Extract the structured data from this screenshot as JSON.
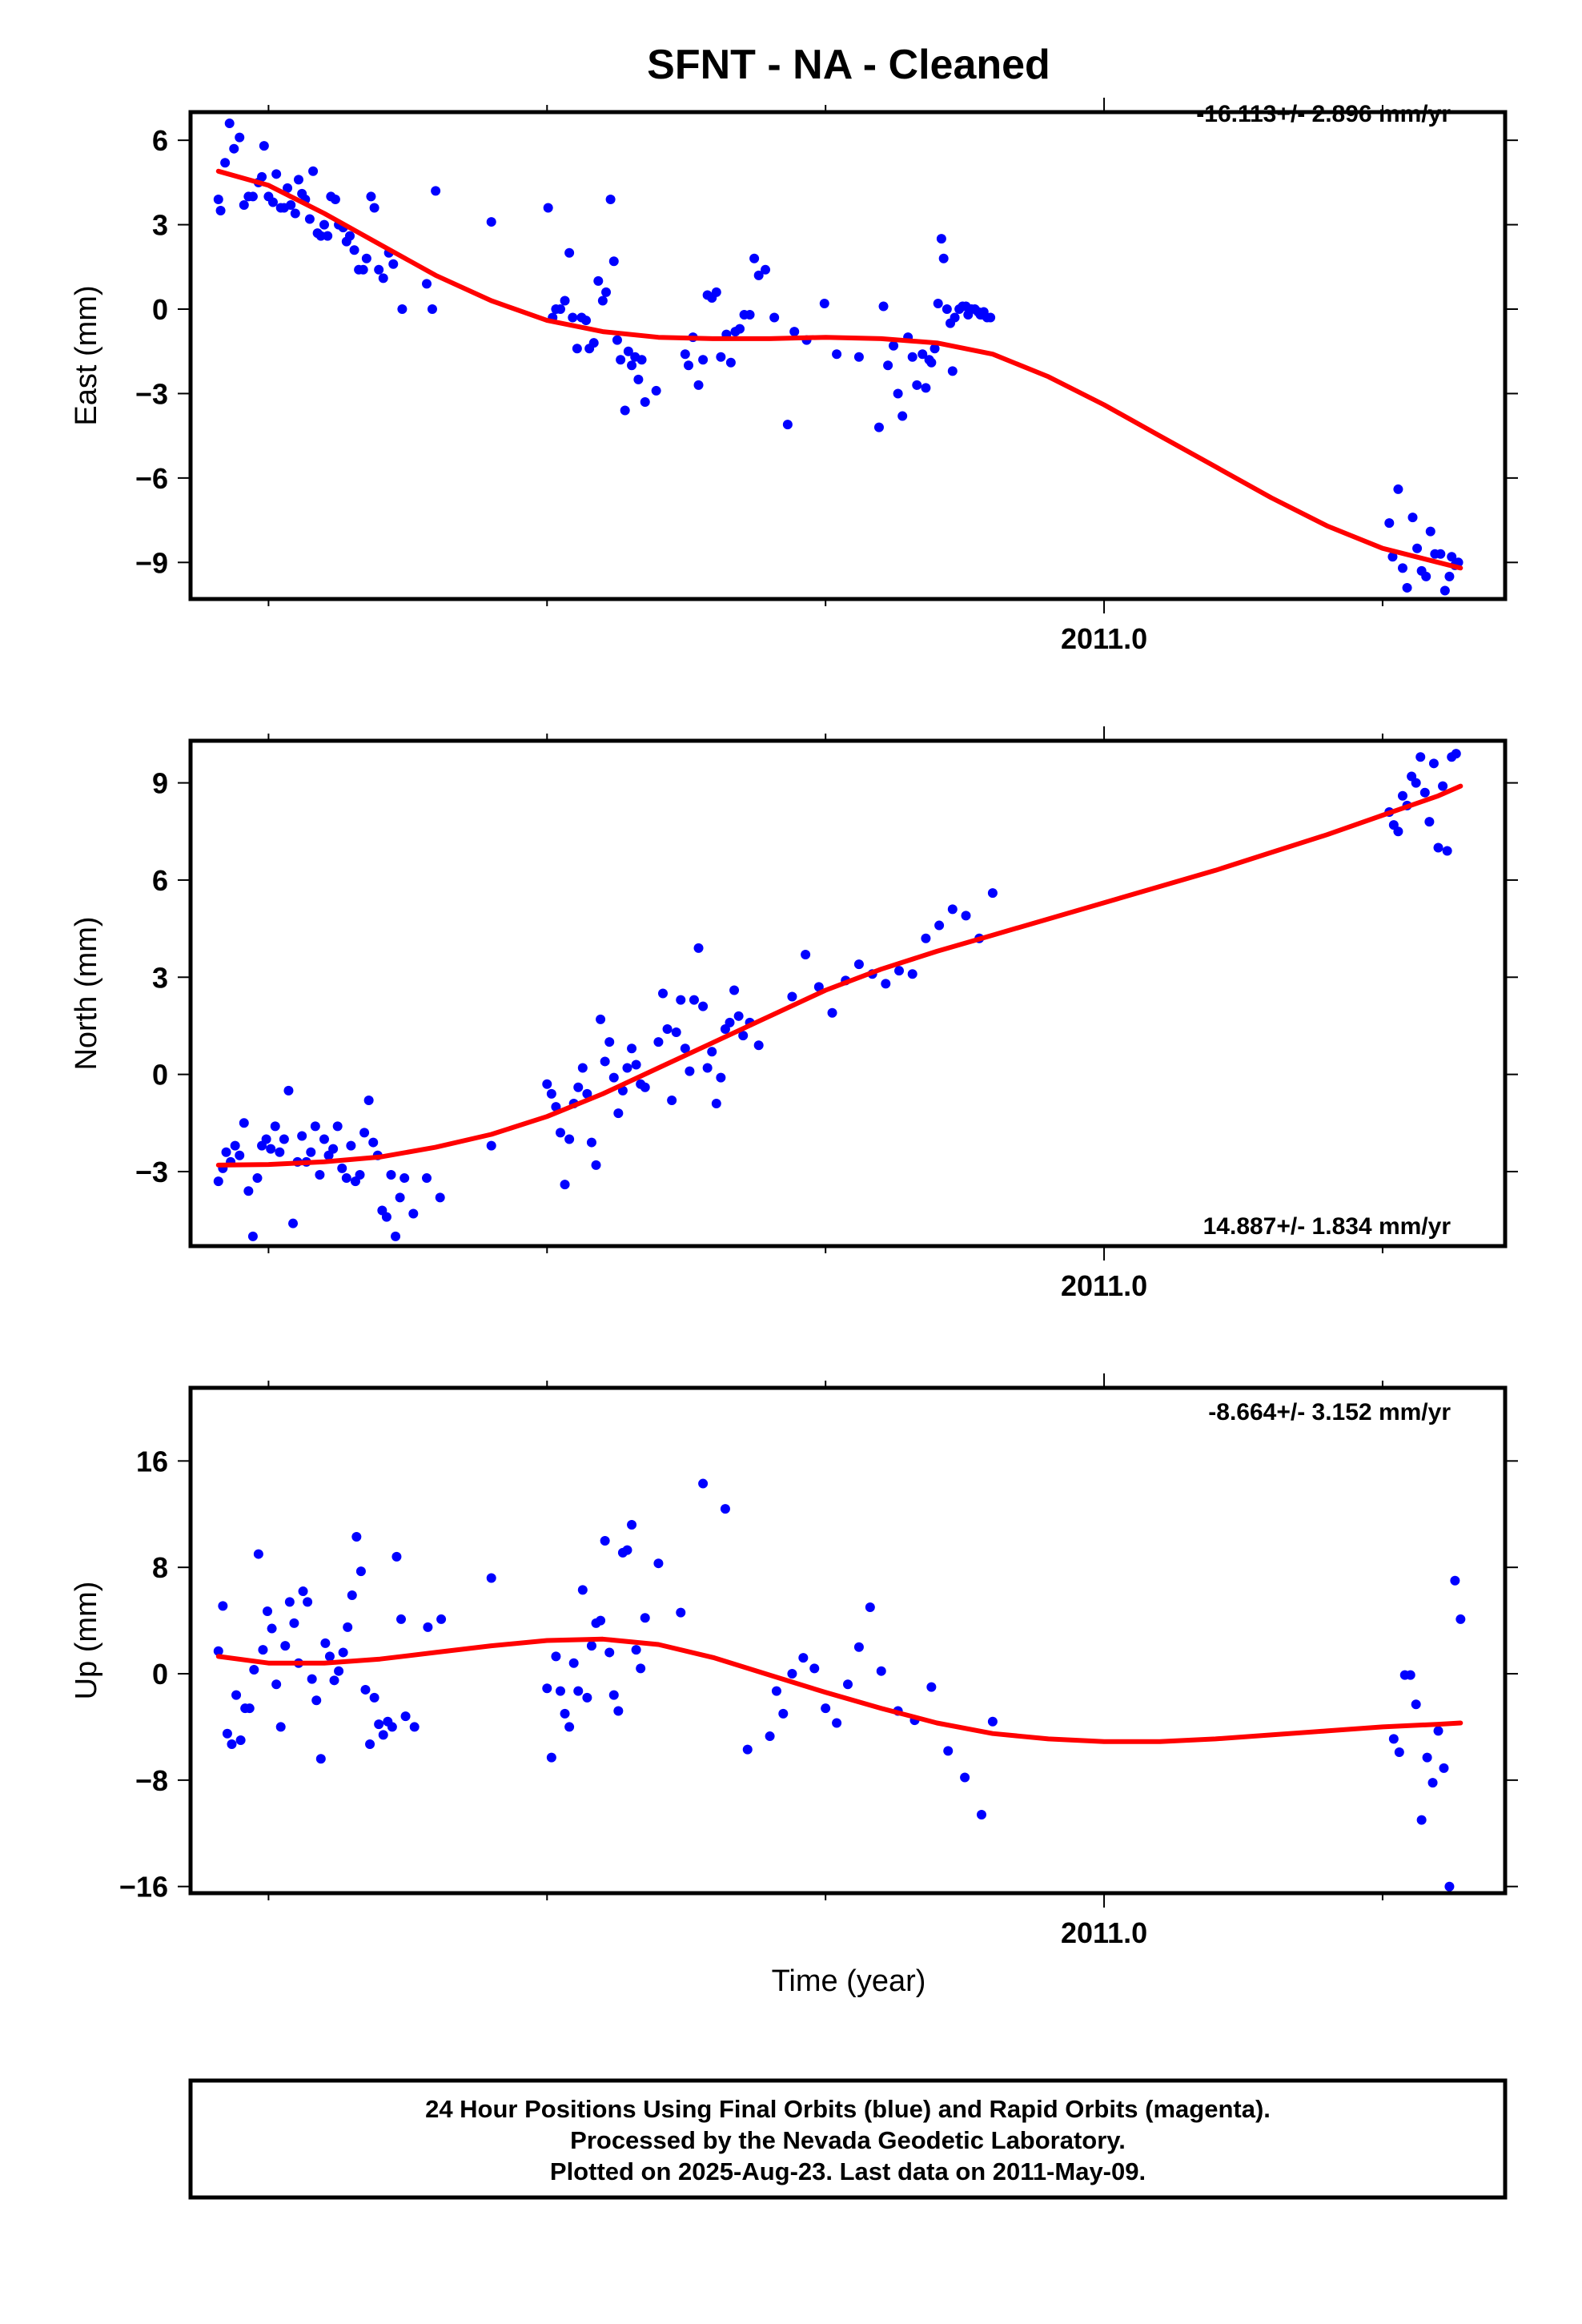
{
  "title": "SFNT  - NA - Cleaned",
  "footer": {
    "line1": "24 Hour Positions Using Final Orbits (blue) and Rapid Orbits (magenta).",
    "line2": "Processed by the Nevada Geodetic Laboratory.",
    "line3": "Plotted on 2025-Aug-23. Last data on 2011-May-09."
  },
  "colors": {
    "points": "#0000ff",
    "fit": "#ff0000",
    "frame": "#000000"
  },
  "chart_data": [
    {
      "type": "scatter",
      "ylabel": "East (mm)",
      "xtick_label": "2011.0",
      "xlim": [
        2010.18,
        2011.36
      ],
      "ylim": [
        -10.3,
        7.0
      ],
      "yticks": [
        6,
        3,
        0,
        -3,
        -6,
        -9
      ],
      "ytick_labels": [
        "6",
        "3",
        "0",
        "−3",
        "−6",
        "−9"
      ],
      "rate_text": "-16.113+/- 2.896 mm/yr",
      "series": [
        {
          "x": [
            2010.205,
            2010.207,
            2010.211,
            2010.215,
            2010.219,
            2010.224,
            2010.228,
            2010.232,
            2010.236,
            2010.241,
            2010.244,
            2010.246,
            2010.25,
            2010.254,
            2010.257,
            2010.261,
            2010.264,
            2010.267,
            2010.27,
            2010.274,
            2010.277,
            2010.28,
            2010.283,
            2010.287,
            2010.29,
            2010.294,
            2010.297,
            2010.3,
            2010.303,
            2010.306,
            2010.31,
            2010.313,
            2010.317,
            2010.32,
            2010.323,
            2010.327,
            2010.331,
            2010.335,
            2010.338,
            2010.342,
            2010.345,
            2010.349,
            2010.353,
            2010.358,
            2010.362,
            2010.37,
            2010.392,
            2010.397,
            2010.4,
            2010.45,
            2010.501,
            2010.505,
            2010.508,
            2010.512,
            2010.516,
            2010.52,
            2010.523,
            2010.527,
            2010.531,
            2010.535,
            2010.538,
            2010.542,
            2010.546,
            2010.55,
            2010.553,
            2010.557,
            2010.56,
            2010.563,
            2010.566,
            2010.57,
            2010.573,
            2010.576,
            2010.579,
            2010.582,
            2010.585,
            2010.588,
            2010.598,
            2010.624,
            2010.627,
            2010.631,
            2010.636,
            2010.64,
            2010.644,
            2010.648,
            2010.652,
            2010.656,
            2010.661,
            2010.665,
            2010.669,
            2010.673,
            2010.677,
            2010.682,
            2010.686,
            2010.69,
            2010.696,
            2010.704,
            2010.716,
            2010.722,
            2010.733,
            2010.749,
            2010.76,
            2010.78,
            2010.798,
            2010.802,
            2010.806,
            2010.811,
            2010.815,
            2010.819,
            2010.824,
            2010.828,
            2010.832,
            2010.837,
            2010.84,
            2010.843,
            2010.845,
            2010.848,
            2010.851,
            2010.854,
            2010.856,
            2010.859,
            2010.862,
            2010.864,
            2010.866,
            2010.87,
            2010.873,
            2010.876,
            2010.878,
            2010.881,
            2010.884,
            2010.887,
            2010.889,
            2010.89,
            2010.892,
            2010.895,
            2010.898,
            2011.256,
            2011.259,
            2011.264,
            2011.268,
            2011.272,
            2011.277,
            2011.281,
            2011.285,
            2011.289,
            2011.293,
            2011.297,
            2011.302,
            2011.306,
            2011.31,
            2011.312,
            2011.315,
            2011.318
          ],
          "y": [
            3.9,
            3.5,
            5.2,
            6.6,
            5.7,
            6.1,
            3.7,
            4.0,
            4.0,
            4.5,
            4.7,
            5.8,
            4.0,
            3.8,
            4.8,
            3.6,
            3.6,
            4.3,
            3.7,
            3.4,
            4.6,
            4.1,
            3.9,
            3.2,
            4.9,
            2.7,
            2.6,
            3.0,
            2.6,
            4.0,
            3.9,
            3.0,
            2.9,
            2.4,
            2.6,
            2.1,
            1.4,
            1.4,
            1.8,
            4.0,
            3.6,
            1.4,
            1.1,
            2.0,
            1.6,
            0.0,
            0.9,
            0.0,
            4.2,
            3.1,
            3.6,
            -0.3,
            0.0,
            0.0,
            0.3,
            2.0,
            -0.3,
            -1.4,
            -0.3,
            -0.4,
            -1.4,
            -1.2,
            1.0,
            0.3,
            0.6,
            3.9,
            1.7,
            -1.1,
            -1.8,
            -3.6,
            -1.5,
            -2.0,
            -1.7,
            -2.5,
            -1.8,
            -3.3,
            -2.9,
            -1.6,
            -2.0,
            -1.0,
            -2.7,
            -1.8,
            0.5,
            0.4,
            0.6,
            -1.7,
            -0.9,
            -1.9,
            -0.8,
            -0.7,
            -0.2,
            -0.2,
            1.8,
            1.2,
            1.4,
            -0.3,
            -4.1,
            -0.8,
            -1.1,
            0.2,
            -1.6,
            -1.7,
            -4.2,
            0.1,
            -2.0,
            -1.3,
            -3.0,
            -3.8,
            -1.0,
            -1.7,
            -2.7,
            -1.6,
            -2.8,
            -1.8,
            -1.9,
            -1.4,
            0.2,
            2.5,
            1.8,
            0.0,
            -0.5,
            -2.2,
            -0.3,
            0.0,
            0.1,
            0.1,
            -0.2,
            0.0,
            0.0,
            -0.1,
            -0.2,
            -0.2,
            -0.1,
            -0.3,
            -0.3,
            -7.6,
            -8.8,
            -6.4,
            -9.2,
            -9.9,
            -7.4,
            -8.5,
            -9.3,
            -9.5,
            -7.9,
            -8.7,
            -8.7,
            -10.0,
            -9.5,
            -8.8,
            -9.1,
            -9.0
          ]
        }
      ]
    },
    {
      "type": "scatter",
      "ylabel": "North (mm)",
      "xtick_label": "2011.0",
      "xlim": [
        2010.18,
        2011.36
      ],
      "ylim": [
        -5.3,
        10.3
      ],
      "yticks": [
        9,
        6,
        3,
        0,
        -3
      ],
      "ytick_labels": [
        "9",
        "6",
        "3",
        "0",
        "−3"
      ],
      "rate_text": "14.887+/- 1.834 mm/yr",
      "series": [
        {
          "x": [
            2010.205,
            2010.209,
            2010.212,
            2010.216,
            2010.22,
            2010.224,
            2010.228,
            2010.232,
            2010.236,
            2010.24,
            2010.244,
            2010.248,
            2010.252,
            2010.256,
            2010.26,
            2010.264,
            2010.268,
            2010.272,
            2010.276,
            2010.28,
            2010.284,
            2010.288,
            2010.292,
            2010.296,
            2010.3,
            2010.304,
            2010.308,
            2010.312,
            2010.316,
            2010.32,
            2010.324,
            2010.328,
            2010.332,
            2010.336,
            2010.34,
            2010.344,
            2010.348,
            2010.352,
            2010.356,
            2010.36,
            2010.364,
            2010.368,
            2010.372,
            2010.38,
            2010.392,
            2010.404,
            2010.45,
            2010.5,
            2010.504,
            2010.508,
            2010.512,
            2010.516,
            2010.52,
            2010.524,
            2010.528,
            2010.532,
            2010.536,
            2010.54,
            2010.544,
            2010.548,
            2010.552,
            2010.556,
            2010.56,
            2010.564,
            2010.568,
            2010.572,
            2010.576,
            2010.58,
            2010.584,
            2010.588,
            2010.6,
            2010.604,
            2010.608,
            2010.612,
            2010.616,
            2010.62,
            2010.624,
            2010.628,
            2010.632,
            2010.636,
            2010.64,
            2010.644,
            2010.648,
            2010.652,
            2010.656,
            2010.66,
            2010.664,
            2010.668,
            2010.672,
            2010.676,
            2010.682,
            2010.69,
            2010.72,
            2010.732,
            2010.744,
            2010.756,
            2010.768,
            2010.78,
            2010.792,
            2010.804,
            2010.816,
            2010.828,
            2010.84,
            2010.852,
            2010.864,
            2010.876,
            2010.888,
            2010.9,
            2011.256,
            2011.26,
            2011.264,
            2011.268,
            2011.272,
            2011.276,
            2011.28,
            2011.284,
            2011.288,
            2011.292,
            2011.296,
            2011.3,
            2011.304,
            2011.308,
            2011.312,
            2011.316
          ],
          "y": [
            -3.3,
            -2.9,
            -2.4,
            -2.7,
            -2.2,
            -2.5,
            -1.5,
            -3.6,
            -5.0,
            -3.2,
            -2.2,
            -2.0,
            -2.3,
            -1.6,
            -2.4,
            -2.0,
            -0.5,
            -4.6,
            -2.7,
            -1.9,
            -2.7,
            -2.4,
            -1.6,
            -3.1,
            -2.0,
            -2.5,
            -2.3,
            -1.6,
            -2.9,
            -3.2,
            -2.2,
            -3.3,
            -3.1,
            -1.8,
            -0.8,
            -2.1,
            -2.5,
            -4.2,
            -4.4,
            -3.1,
            -5.0,
            -3.8,
            -3.2,
            -4.3,
            -3.2,
            -3.8,
            -2.2,
            -0.3,
            -0.6,
            -1.0,
            -1.8,
            -3.4,
            -2.0,
            -0.9,
            -0.4,
            0.2,
            -0.6,
            -2.1,
            -2.8,
            1.7,
            0.4,
            1.0,
            -0.1,
            -1.2,
            -0.5,
            0.2,
            0.8,
            0.3,
            -0.3,
            -0.4,
            1.0,
            2.5,
            1.4,
            -0.8,
            1.3,
            2.3,
            0.8,
            0.1,
            2.3,
            3.9,
            2.1,
            0.2,
            0.7,
            -0.9,
            -0.1,
            1.4,
            1.6,
            2.6,
            1.8,
            1.2,
            1.6,
            0.9,
            2.4,
            3.7,
            2.7,
            1.9,
            2.9,
            3.4,
            3.1,
            2.8,
            3.2,
            3.1,
            4.2,
            4.6,
            5.1,
            4.9,
            4.2,
            5.6,
            8.1,
            7.7,
            7.5,
            8.6,
            8.3,
            9.2,
            9.0,
            9.8,
            8.7,
            7.8,
            9.6,
            7.0,
            8.9,
            6.9,
            9.8,
            9.9
          ]
        }
      ]
    },
    {
      "type": "scatter",
      "ylabel": "Up (mm)",
      "xlabel": "Time (year)",
      "xtick_label": "2011.0",
      "xlim": [
        2010.18,
        2011.36
      ],
      "ylim": [
        -16.5,
        21.5
      ],
      "yticks": [
        16,
        8,
        0,
        -8,
        -16
      ],
      "ytick_labels": [
        "16",
        "8",
        "0",
        "−8",
        "−16"
      ],
      "rate_text": "-8.664+/- 3.152 mm/yr",
      "series": [
        {
          "x": [
            2010.205,
            2010.209,
            2010.213,
            2010.217,
            2010.221,
            2010.225,
            2010.229,
            2010.233,
            2010.237,
            2010.241,
            2010.245,
            2010.249,
            2010.253,
            2010.257,
            2010.261,
            2010.265,
            2010.269,
            2010.273,
            2010.277,
            2010.281,
            2010.285,
            2010.289,
            2010.293,
            2010.297,
            2010.301,
            2010.305,
            2010.309,
            2010.313,
            2010.317,
            2010.321,
            2010.325,
            2010.329,
            2010.333,
            2010.337,
            2010.341,
            2010.345,
            2010.349,
            2010.353,
            2010.357,
            2010.361,
            2010.365,
            2010.369,
            2010.373,
            2010.381,
            2010.393,
            2010.405,
            2010.45,
            2010.5,
            2010.504,
            2010.508,
            2010.512,
            2010.516,
            2010.52,
            2010.524,
            2010.528,
            2010.532,
            2010.536,
            2010.54,
            2010.544,
            2010.548,
            2010.552,
            2010.556,
            2010.56,
            2010.564,
            2010.568,
            2010.572,
            2010.576,
            2010.58,
            2010.584,
            2010.588,
            2010.6,
            2010.62,
            2010.64,
            2010.66,
            2010.68,
            2010.7,
            2010.706,
            2010.712,
            2010.72,
            2010.73,
            2010.74,
            2010.75,
            2010.76,
            2010.77,
            2010.78,
            2010.79,
            2010.8,
            2010.815,
            2010.83,
            2010.845,
            2010.86,
            2010.875,
            2010.89,
            2010.9,
            2011.26,
            2011.265,
            2011.27,
            2011.275,
            2011.28,
            2011.285,
            2011.29,
            2011.295,
            2011.3,
            2011.305,
            2011.31,
            2011.315,
            2011.32
          ],
          "y": [
            1.7,
            5.1,
            -4.5,
            -5.3,
            -1.6,
            -5.0,
            -2.6,
            -2.6,
            0.3,
            9.0,
            1.8,
            4.7,
            3.4,
            -0.8,
            -4.0,
            2.1,
            5.4,
            3.8,
            0.8,
            6.2,
            5.4,
            -0.4,
            -2.0,
            -6.4,
            2.3,
            1.3,
            -0.5,
            0.2,
            1.6,
            3.5,
            5.9,
            10.3,
            7.7,
            -1.2,
            -5.3,
            -1.8,
            -3.8,
            -4.6,
            -3.6,
            -4.0,
            8.8,
            4.1,
            -3.2,
            -4.0,
            3.5,
            4.1,
            7.2,
            -1.1,
            -6.3,
            1.3,
            -1.3,
            -3.0,
            -4.0,
            0.8,
            -1.3,
            6.3,
            -1.8,
            2.1,
            3.8,
            4.0,
            10.0,
            1.6,
            -1.6,
            -2.8,
            9.1,
            9.3,
            11.2,
            1.8,
            0.4,
            4.2,
            8.3,
            4.6,
            14.3,
            12.4,
            -5.7,
            -4.7,
            -1.3,
            -3.0,
            0.0,
            1.2,
            0.4,
            -2.6,
            -3.7,
            -0.8,
            2.0,
            5.0,
            0.2,
            -2.8,
            -3.5,
            -1.0,
            -5.8,
            -7.8,
            -10.6,
            -3.6,
            -4.9,
            -5.9,
            -0.1,
            -0.1,
            -2.3,
            -11.0,
            -6.3,
            -8.2,
            -4.3,
            -7.1,
            -16.0,
            7.0,
            4.1
          ]
        }
      ]
    }
  ],
  "fits": [
    {
      "x": [
        2010.205,
        2010.25,
        2010.3,
        2010.35,
        2010.4,
        2010.45,
        2010.5,
        2010.55,
        2010.6,
        2010.65,
        2010.7,
        2010.75,
        2010.8,
        2010.85,
        2010.9,
        2010.95,
        2011.0,
        2011.05,
        2011.1,
        2011.15,
        2011.2,
        2011.25,
        2011.3,
        2011.32
      ],
      "y": [
        4.9,
        4.4,
        3.4,
        2.3,
        1.2,
        0.3,
        -0.4,
        -0.8,
        -1.0,
        -1.05,
        -1.05,
        -1.0,
        -1.05,
        -1.2,
        -1.6,
        -2.4,
        -3.4,
        -4.5,
        -5.6,
        -6.7,
        -7.7,
        -8.5,
        -9.0,
        -9.2
      ]
    },
    {
      "x": [
        2010.205,
        2010.25,
        2010.3,
        2010.35,
        2010.4,
        2010.45,
        2010.5,
        2010.55,
        2010.6,
        2010.65,
        2010.7,
        2010.75,
        2010.8,
        2010.85,
        2010.9,
        2010.95,
        2011.0,
        2011.05,
        2011.1,
        2011.15,
        2011.2,
        2011.25,
        2011.3,
        2011.32
      ],
      "y": [
        -2.8,
        -2.78,
        -2.7,
        -2.55,
        -2.25,
        -1.85,
        -1.3,
        -0.6,
        0.2,
        1.0,
        1.8,
        2.6,
        3.25,
        3.8,
        4.3,
        4.8,
        5.3,
        5.8,
        6.3,
        6.85,
        7.4,
        8.0,
        8.6,
        8.9
      ]
    },
    {
      "x": [
        2010.205,
        2010.25,
        2010.3,
        2010.35,
        2010.4,
        2010.45,
        2010.5,
        2010.55,
        2010.6,
        2010.65,
        2010.7,
        2010.75,
        2010.8,
        2010.85,
        2010.9,
        2010.95,
        2011.0,
        2011.05,
        2011.1,
        2011.15,
        2011.2,
        2011.25,
        2011.3,
        2011.32
      ],
      "y": [
        1.3,
        0.8,
        0.8,
        1.1,
        1.6,
        2.1,
        2.5,
        2.6,
        2.2,
        1.2,
        -0.1,
        -1.4,
        -2.6,
        -3.7,
        -4.5,
        -4.9,
        -5.1,
        -5.1,
        -4.9,
        -4.6,
        -4.3,
        -4.0,
        -3.8,
        -3.7
      ]
    }
  ]
}
